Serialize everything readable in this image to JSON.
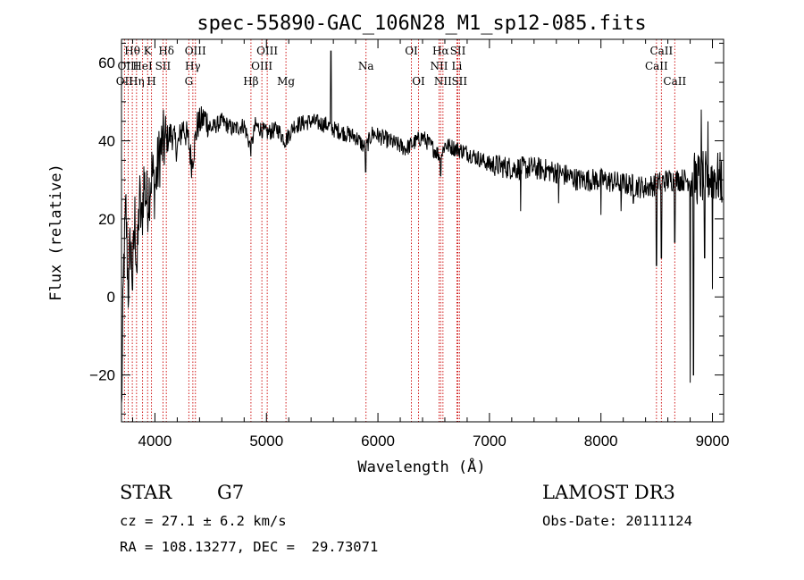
{
  "chart_data": {
    "type": "line",
    "title": "spec-55890-GAC_106N28_M1_sp12-085.fits",
    "xlabel": "Wavelength (Å)",
    "ylabel": "Flux (relative)",
    "xlim": [
      3700,
      9100
    ],
    "ylim": [
      -32,
      66
    ],
    "x_ticks": [
      4000,
      5000,
      6000,
      7000,
      8000,
      9000
    ],
    "y_ticks": [
      -20,
      0,
      20,
      40,
      60
    ],
    "spectrum_anchors": [
      [
        3700,
        -30
      ],
      [
        3720,
        8
      ],
      [
        3740,
        22
      ],
      [
        3760,
        2
      ],
      [
        3780,
        14
      ],
      [
        3800,
        4
      ],
      [
        3820,
        20
      ],
      [
        3840,
        6
      ],
      [
        3860,
        26
      ],
      [
        3880,
        18
      ],
      [
        3900,
        30
      ],
      [
        3930,
        24
      ],
      [
        3970,
        32
      ],
      [
        4000,
        28
      ],
      [
        4050,
        38
      ],
      [
        4100,
        40
      ],
      [
        4150,
        42
      ],
      [
        4200,
        38
      ],
      [
        4250,
        44
      ],
      [
        4300,
        40
      ],
      [
        4330,
        34
      ],
      [
        4380,
        44
      ],
      [
        4450,
        46
      ],
      [
        4500,
        43
      ],
      [
        4600,
        45
      ],
      [
        4700,
        43
      ],
      [
        4800,
        44
      ],
      [
        4860,
        38
      ],
      [
        4900,
        44
      ],
      [
        5000,
        42
      ],
      [
        5100,
        43
      ],
      [
        5170,
        40
      ],
      [
        5250,
        44
      ],
      [
        5400,
        45
      ],
      [
        5550,
        44
      ],
      [
        5600,
        43
      ],
      [
        5700,
        42
      ],
      [
        5800,
        41
      ],
      [
        5890,
        38
      ],
      [
        5950,
        42
      ],
      [
        6100,
        40
      ],
      [
        6250,
        38
      ],
      [
        6400,
        41
      ],
      [
        6563,
        36
      ],
      [
        6600,
        39
      ],
      [
        6800,
        37
      ],
      [
        7000,
        34
      ],
      [
        7200,
        33
      ],
      [
        7400,
        33
      ],
      [
        7600,
        32
      ],
      [
        7800,
        30
      ],
      [
        8000,
        30
      ],
      [
        8200,
        29
      ],
      [
        8400,
        28
      ],
      [
        8600,
        30
      ],
      [
        8800,
        30
      ],
      [
        9000,
        31
      ],
      [
        9090,
        30
      ]
    ],
    "dips": [
      [
        5890,
        32
      ],
      [
        6563,
        31
      ],
      [
        7280,
        22
      ],
      [
        7620,
        24
      ],
      [
        8000,
        21
      ],
      [
        8180,
        22
      ],
      [
        8290,
        24
      ],
      [
        8498,
        8
      ],
      [
        8542,
        10
      ],
      [
        8662,
        14
      ],
      [
        8800,
        -22
      ],
      [
        8830,
        -20
      ],
      [
        8930,
        10
      ],
      [
        8960,
        -12
      ],
      [
        9000,
        2
      ]
    ],
    "spikes": [
      [
        5577,
        63
      ],
      [
        8900,
        48
      ],
      [
        8960,
        45
      ]
    ],
    "lines": [
      {
        "label": "OII",
        "x": 3727,
        "row": 3
      },
      {
        "label": "Hθ",
        "x": 3797,
        "row": 1
      },
      {
        "label": "OIII",
        "x": 3760,
        "row": 2
      },
      {
        "label": "Hη",
        "x": 3835,
        "row": 3
      },
      {
        "label": "HeI",
        "x": 3889,
        "row": 2
      },
      {
        "label": "K",
        "x": 3934,
        "row": 1
      },
      {
        "label": "H",
        "x": 3969,
        "row": 3
      },
      {
        "label": "SII",
        "x": 4072,
        "row": 2
      },
      {
        "label": "Hδ",
        "x": 4102,
        "row": 1
      },
      {
        "label": "Hγ",
        "x": 4340,
        "row": 2
      },
      {
        "label": "OIII",
        "x": 4363,
        "row": 1
      },
      {
        "label": "G",
        "x": 4304,
        "row": 3
      },
      {
        "label": "Hβ",
        "x": 4861,
        "row": 3
      },
      {
        "label": "OIII",
        "x": 4959,
        "row": 2
      },
      {
        "label": "OIII",
        "x": 5007,
        "row": 1
      },
      {
        "label": "Mg",
        "x": 5175,
        "row": 3
      },
      {
        "label": "Na",
        "x": 5893,
        "row": 2
      },
      {
        "label": "OI",
        "x": 6300,
        "row": 1
      },
      {
        "label": "OI",
        "x": 6364,
        "row": 3
      },
      {
        "label": "NII",
        "x": 6548,
        "row": 2
      },
      {
        "label": "Hα",
        "x": 6563,
        "row": 1
      },
      {
        "label": "NII",
        "x": 6583,
        "row": 3
      },
      {
        "label": "SII",
        "x": 6717,
        "row": 1
      },
      {
        "label": "Li",
        "x": 6708,
        "row": 2
      },
      {
        "label": "SII",
        "x": 6731,
        "row": 3
      },
      {
        "label": "CaII",
        "x": 8498,
        "row": 2
      },
      {
        "label": "CaII",
        "x": 8542,
        "row": 1
      },
      {
        "label": "CaII",
        "x": 8662,
        "row": 3
      }
    ],
    "colors": {
      "spectrum": "#000000",
      "line_markers": "#cc0000"
    }
  },
  "info": {
    "class": "STAR",
    "subclass": "G7",
    "survey": "LAMOST DR3",
    "cz": "cz = 27.1 ± 6.2 km/s",
    "obs_date": "Obs-Date: 20111124",
    "coords": "RA = 108.13277, DEC =  29.73071"
  }
}
